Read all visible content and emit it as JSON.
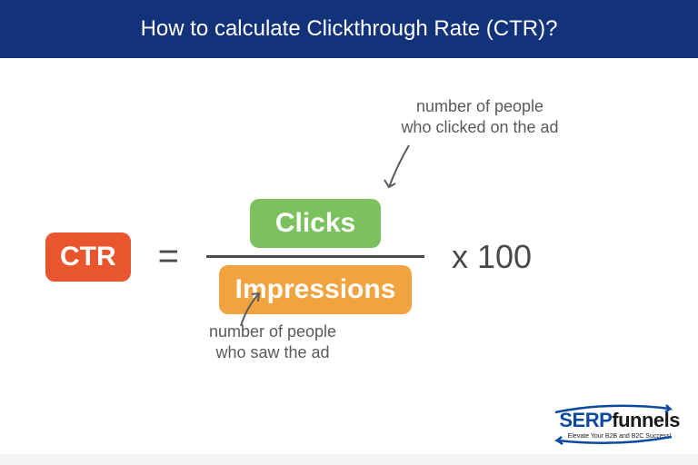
{
  "header": {
    "title": "How to calculate Clickthrough Rate (CTR)?",
    "background_color": "#12327a",
    "text_color": "#ffffff"
  },
  "content_background": "#ffffff",
  "formula": {
    "ctr": {
      "label": "CTR",
      "bg_color": "#e8552f",
      "text_color": "#ffffff"
    },
    "equals": {
      "text": "=",
      "color": "#4a4a4a"
    },
    "numerator": {
      "label": "Clicks",
      "bg_color": "#7bc15e",
      "text_color": "#ffffff"
    },
    "denominator": {
      "label": "Impressions",
      "bg_color": "#f0a33f",
      "text_color": "#ffffff"
    },
    "fraction_line_color": "#4a4a4a",
    "multiply": {
      "text": "x  100",
      "color": "#4a4a4a"
    }
  },
  "annotations": {
    "top": {
      "text": "number of people\nwho clicked on the ad",
      "color": "#5a5a5a"
    },
    "bottom": {
      "text": "number of people\nwho saw the ad",
      "color": "#5a5a5a"
    },
    "arrow_color": "#5a5a5a"
  },
  "logo": {
    "serp_text": "SERP",
    "funnels_text": "funnels",
    "tagline": "Elevate Your B2B and B2C Success!",
    "serp_color": "#0b4aa0",
    "funnels_color": "#1a1a1a",
    "tagline_color": "#1a1a1a",
    "swoosh_color": "#0b4aa0"
  }
}
